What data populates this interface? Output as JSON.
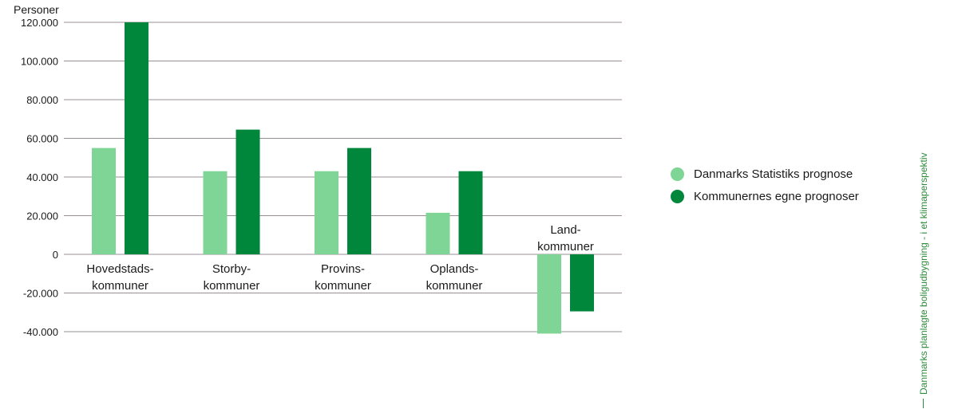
{
  "chart_data": {
    "type": "bar",
    "ylabel": "Personer",
    "ylim": [
      -40000,
      120000
    ],
    "yticks": [
      120000,
      100000,
      80000,
      60000,
      40000,
      20000,
      0,
      -20000,
      -40000
    ],
    "ytick_labels": [
      "120.000",
      "100.000",
      "80.000",
      "60.000",
      "40.000",
      "20.000",
      "0",
      "-20.000",
      "-40.000"
    ],
    "categories": [
      [
        "Hovedstads-",
        "kommuner"
      ],
      [
        "Storby-",
        "kommuner"
      ],
      [
        "Provins-",
        "kommuner"
      ],
      [
        "Oplands-",
        "kommuner"
      ],
      [
        "Land-",
        "kommuner"
      ]
    ],
    "series": [
      {
        "name": "Danmarks Statistiks prognose",
        "color": "#7fd596",
        "values": [
          55000,
          43000,
          43000,
          21500,
          -41000
        ]
      },
      {
        "name": "Kommunernes egne prognoser",
        "color": "#00873c",
        "values": [
          120000,
          64500,
          55000,
          43000,
          -29500
        ]
      }
    ],
    "grid": true,
    "legend_position": "right"
  },
  "sidebar": {
    "text": "Danmarks planlagte boligudbygning - i et klimaperspektiv"
  },
  "colors": {
    "gridline": "#9a8f95",
    "accent": "#2e8b3c"
  }
}
